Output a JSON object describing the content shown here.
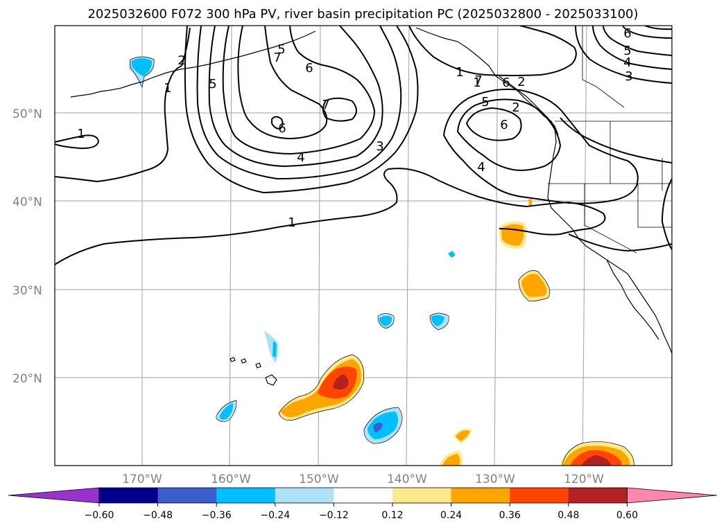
{
  "title": "2025032600 F072 300 hPa PV, river basin precipitation PC (2025032800 - 2025033100)",
  "lat_labels": [
    "50°N",
    "40°N",
    "30°N",
    "20°N"
  ],
  "lon_labels": [
    "170°W",
    "160°W",
    "150°W",
    "140°W",
    "130°W",
    "120°W"
  ],
  "colorbar": {
    "ticks": [
      "−0.60",
      "−0.48",
      "−0.36",
      "−0.24",
      "−0.12",
      "0.12",
      "0.24",
      "0.36",
      "0.48",
      "0.60"
    ],
    "colors": [
      "#9932cc",
      "#00008b",
      "#3a5fcd",
      "#00bfff",
      "#aee2f8",
      "#ffffff",
      "#ffe98a",
      "#ffa500",
      "#ff4500",
      "#b22222",
      "#ff88aa"
    ]
  },
  "contour_labels": [
    "1",
    "2",
    "1",
    "5",
    "6",
    "7",
    "6",
    "7",
    "5",
    "4",
    "3",
    "1",
    "1",
    "2",
    "5",
    "6",
    "4",
    "6",
    "5",
    "4",
    "3",
    "1",
    "6",
    "2",
    "7"
  ],
  "colors": {
    "ocean": "#ffffff",
    "grid": "#a0a0a0",
    "contour": "#000000",
    "pos_light": "#ffe98a",
    "pos_mid": "#ffa500",
    "pos_strong": "#ff4500",
    "pos_max": "#b22222",
    "neg_light": "#aee2f8",
    "neg_mid": "#00bfff",
    "neg_strong": "#3a5fcd"
  }
}
